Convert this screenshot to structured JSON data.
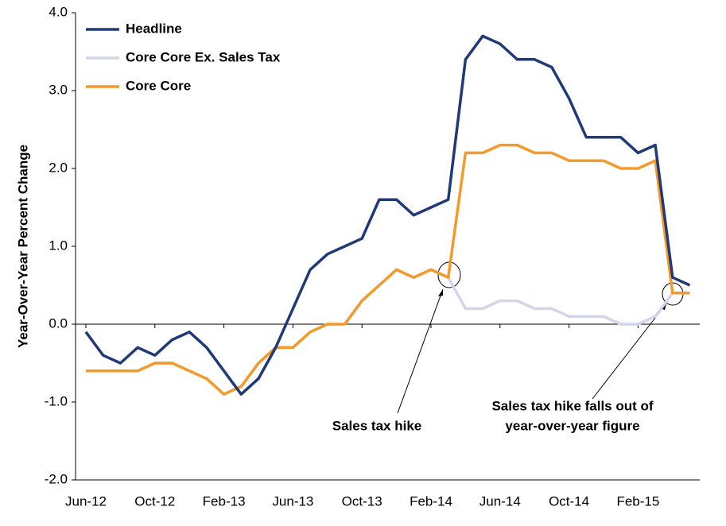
{
  "chart_data": {
    "type": "line",
    "y_label": "Year-Over-Year Percent Change",
    "categories": [
      "Jun-12",
      null,
      null,
      null,
      "Oct-12",
      null,
      null,
      null,
      "Feb-13",
      null,
      null,
      null,
      "Jun-13",
      null,
      null,
      null,
      "Oct-13",
      null,
      null,
      null,
      "Feb-14",
      null,
      null,
      null,
      "Jun-14",
      null,
      null,
      null,
      "Oct-14",
      null,
      null,
      null,
      "Feb-15",
      null,
      null,
      null
    ],
    "series": [
      {
        "name": "Headline",
        "color": "#1f3a77",
        "values": [
          -0.1,
          -0.4,
          -0.5,
          -0.3,
          -0.4,
          -0.2,
          -0.1,
          -0.3,
          -0.6,
          -0.9,
          -0.7,
          -0.3,
          0.2,
          0.7,
          0.9,
          1.0,
          1.1,
          1.6,
          1.6,
          1.4,
          1.5,
          1.6,
          3.4,
          3.7,
          3.6,
          3.4,
          3.4,
          3.3,
          2.9,
          2.4,
          2.4,
          2.4,
          2.2,
          2.3,
          0.6,
          0.5
        ]
      },
      {
        "name": "Core Core Ex. Sales Tax",
        "color": "#d3d5ea",
        "values": [
          -0.6,
          -0.6,
          -0.6,
          -0.6,
          -0.5,
          -0.5,
          -0.6,
          -0.7,
          -0.9,
          -0.8,
          -0.5,
          -0.3,
          -0.3,
          -0.1,
          0.0,
          0.0,
          0.3,
          0.5,
          0.7,
          0.6,
          0.7,
          0.6,
          0.2,
          0.2,
          0.3,
          0.3,
          0.2,
          0.2,
          0.1,
          0.1,
          0.1,
          0.0,
          0.0,
          0.1,
          0.4,
          0.4
        ]
      },
      {
        "name": "Core Core",
        "color": "#f39a2b",
        "values": [
          -0.6,
          -0.6,
          -0.6,
          -0.6,
          -0.5,
          -0.5,
          -0.6,
          -0.7,
          -0.9,
          -0.8,
          -0.5,
          -0.3,
          -0.3,
          -0.1,
          0.0,
          0.0,
          0.3,
          0.5,
          0.7,
          0.6,
          0.7,
          0.6,
          2.2,
          2.2,
          2.3,
          2.3,
          2.2,
          2.2,
          2.1,
          2.1,
          2.1,
          2.0,
          2.0,
          2.1,
          0.4,
          0.4
        ]
      }
    ],
    "ylim": [
      -2,
      4
    ],
    "yticks": [
      {
        "value": -2,
        "label": "-2.0"
      },
      {
        "value": -1,
        "label": "-1.0"
      },
      {
        "value": 0,
        "label": "0.0"
      },
      {
        "value": 1,
        "label": "1.0"
      },
      {
        "value": 2,
        "label": "2.0"
      },
      {
        "value": 3,
        "label": "3.0"
      },
      {
        "value": 4,
        "label": "4.0"
      }
    ],
    "legend": "upper left",
    "annotations": [
      {
        "lines": [
          "Sales tax hike"
        ]
      },
      {
        "lines": [
          "Sales tax hike falls out of",
          "year-over-year figure"
        ]
      }
    ]
  }
}
